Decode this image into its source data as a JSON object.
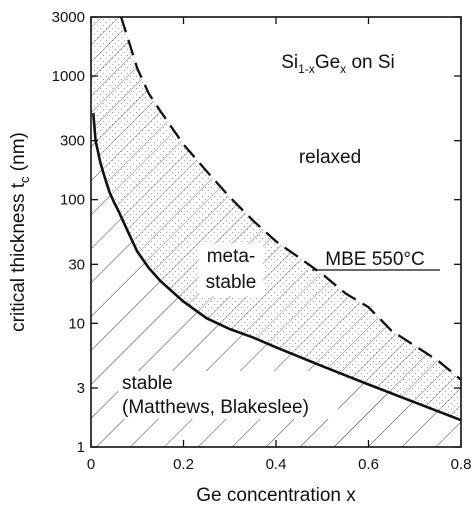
{
  "chart_data": {
    "type": "line",
    "x_label": "Ge concentration x",
    "y_label_main": "critical thickness t",
    "y_label_sub": "c",
    "y_label_unit": " (nm)",
    "y_scale": "log",
    "xlim": [
      0,
      0.8
    ],
    "ylim": [
      1,
      3000
    ],
    "x_ticks": [
      0,
      0.2,
      0.4,
      0.6,
      0.8
    ],
    "x_tick_labels": [
      "0",
      "0.2",
      "0.4",
      "0.6",
      "0.8"
    ],
    "y_ticks": [
      1,
      3,
      10,
      30,
      100,
      300,
      1000,
      3000
    ],
    "y_tick_labels": [
      "1",
      "3",
      "10",
      "30",
      "100",
      "300",
      "1000",
      "3000"
    ],
    "title": {
      "prefix": "Si",
      "sub1": "1-x",
      "mid": "Ge",
      "sub2": "x",
      "suffix": " on Si"
    },
    "series": [
      {
        "name": "Matthews, Blakeslee",
        "style": "solid",
        "points": [
          [
            0.005,
            500
          ],
          [
            0.01,
            300
          ],
          [
            0.02,
            200
          ],
          [
            0.03,
            150
          ],
          [
            0.04,
            115
          ],
          [
            0.05,
            95
          ],
          [
            0.06,
            80
          ],
          [
            0.08,
            55
          ],
          [
            0.1,
            38
          ],
          [
            0.125,
            28
          ],
          [
            0.15,
            22
          ],
          [
            0.2,
            15
          ],
          [
            0.25,
            11
          ],
          [
            0.3,
            9
          ],
          [
            0.35,
            7.7
          ],
          [
            0.4,
            6.4
          ],
          [
            0.5,
            4.5
          ],
          [
            0.6,
            3.2
          ],
          [
            0.7,
            2.3
          ],
          [
            0.8,
            1.65
          ]
        ]
      },
      {
        "name": "MBE 550°C",
        "style": "dashed",
        "points": [
          [
            0.065,
            3000
          ],
          [
            0.08,
            2000
          ],
          [
            0.1,
            1150
          ],
          [
            0.125,
            720
          ],
          [
            0.15,
            520
          ],
          [
            0.2,
            280
          ],
          [
            0.25,
            170
          ],
          [
            0.3,
            105
          ],
          [
            0.35,
            68
          ],
          [
            0.4,
            46
          ],
          [
            0.45,
            34
          ],
          [
            0.5,
            25
          ],
          [
            0.55,
            17.5
          ],
          [
            0.6,
            13.5
          ],
          [
            0.65,
            8.7
          ],
          [
            0.7,
            6.6
          ],
          [
            0.75,
            5.0
          ],
          [
            0.8,
            3.5
          ]
        ]
      }
    ],
    "regions": {
      "relaxed": "relaxed",
      "meta_line1": "meta-",
      "meta_line2": "stable",
      "stable_line1": "stable",
      "stable_line2": "(Matthews, Blakeslee)",
      "mbe_label": "MBE 550°C"
    }
  }
}
